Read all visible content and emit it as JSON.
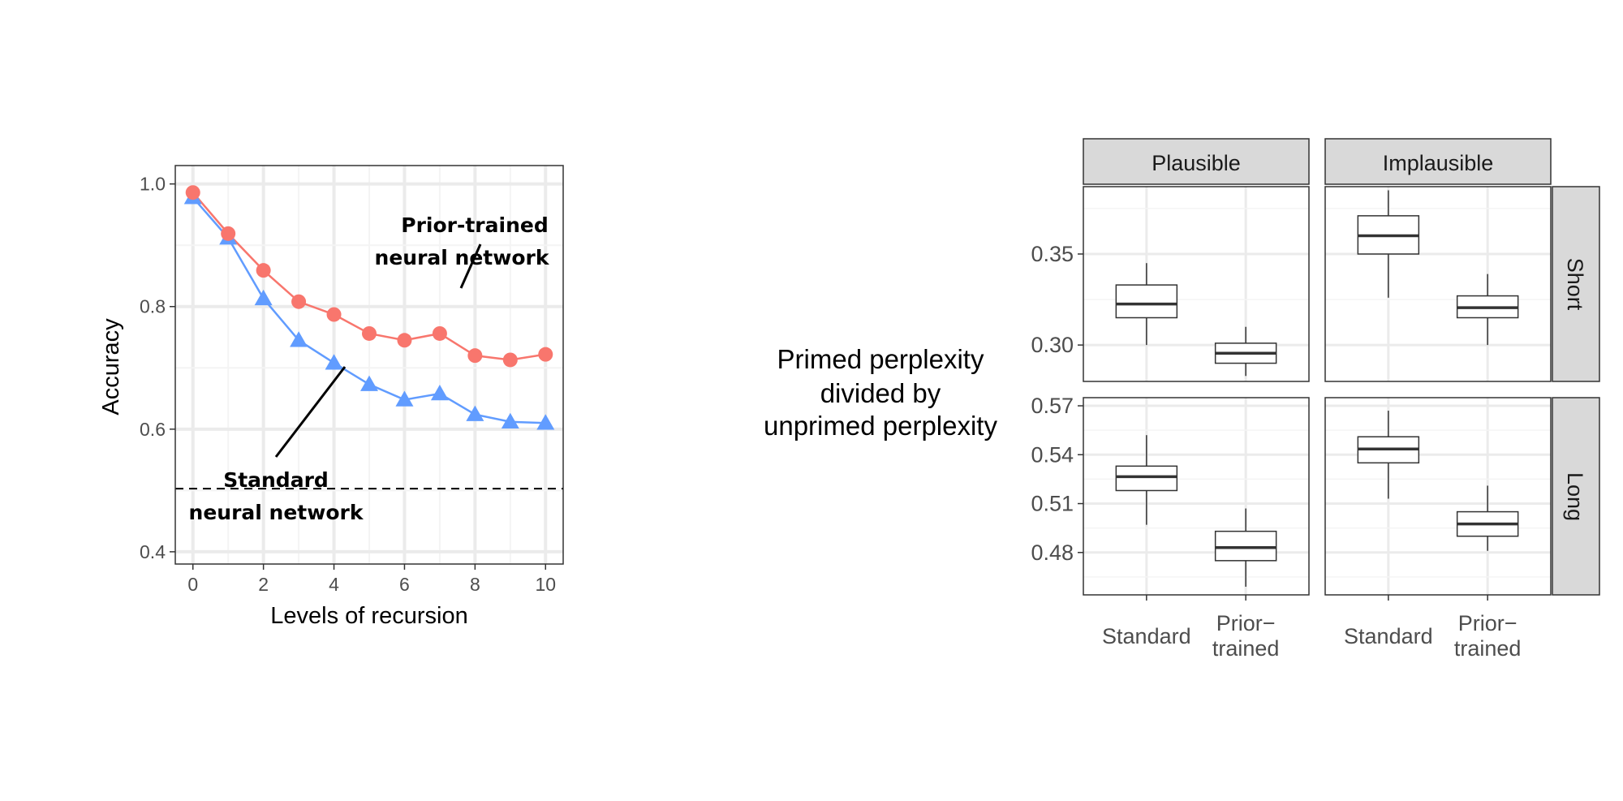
{
  "chart_data": [
    {
      "type": "line",
      "xlabel": "Levels of recursion",
      "ylabel": "Accuracy",
      "xlim": [
        -0.5,
        10.5
      ],
      "ylim": [
        0.38,
        1.03
      ],
      "x_ticks": [
        "0",
        "2",
        "4",
        "6",
        "8",
        "10"
      ],
      "y_ticks": [
        "0.4",
        "0.6",
        "0.8",
        "1.0"
      ],
      "grid": true,
      "x": [
        0,
        1,
        2,
        3,
        4,
        5,
        6,
        7,
        8,
        9,
        10
      ],
      "series": [
        {
          "name": "Prior-trained neural network",
          "color": "#F8766D",
          "marker": "circle",
          "values": [
            0.986,
            0.919,
            0.859,
            0.808,
            0.787,
            0.756,
            0.745,
            0.756,
            0.72,
            0.713,
            0.722
          ]
        },
        {
          "name": "Standard neural network",
          "color": "#619CFF",
          "marker": "triangle",
          "values": [
            0.978,
            0.912,
            0.813,
            0.745,
            0.708,
            0.673,
            0.648,
            0.658,
            0.624,
            0.612,
            0.61
          ]
        }
      ],
      "reference_line": {
        "y": 0.503,
        "style": "dashed"
      },
      "annotations": {
        "prior_line1": "Prior-trained",
        "prior_line2": "neural network",
        "standard_line1": "Standard",
        "standard_line2": "neural network"
      }
    },
    {
      "type": "box",
      "ylabel_lines": [
        "Primed perplexity",
        "divided by",
        "unprimed perplexity"
      ],
      "columns": [
        "Plausible",
        "Implausible"
      ],
      "rows": [
        "Short",
        "Long"
      ],
      "x_categories": [
        {
          "line1": "Standard",
          "line2": ""
        },
        {
          "line1": "Prior−",
          "line2": "trained"
        }
      ],
      "row_scales": [
        {
          "row": "Short",
          "ylim": [
            0.28,
            0.387
          ],
          "ticks": [
            0.3,
            0.35
          ],
          "tick_labels": [
            "0.30",
            "0.35"
          ]
        },
        {
          "row": "Long",
          "ylim": [
            0.454,
            0.575
          ],
          "ticks": [
            0.48,
            0.51,
            0.54,
            0.57
          ],
          "tick_labels": [
            "0.48",
            "0.51",
            "0.54",
            "0.57"
          ]
        }
      ],
      "panels": [
        {
          "row": "Short",
          "column": "Plausible",
          "boxes": [
            {
              "category": "Standard",
              "whisker_low": 0.3,
              "q1": 0.315,
              "median": 0.3225,
              "q3": 0.333,
              "whisker_high": 0.345
            },
            {
              "category": "Prior-trained",
              "whisker_low": 0.283,
              "q1": 0.29,
              "median": 0.2955,
              "q3": 0.301,
              "whisker_high": 0.31
            }
          ]
        },
        {
          "row": "Short",
          "column": "Implausible",
          "boxes": [
            {
              "category": "Standard",
              "whisker_low": 0.326,
              "q1": 0.35,
              "median": 0.36,
              "q3": 0.371,
              "whisker_high": 0.385
            },
            {
              "category": "Prior-trained",
              "whisker_low": 0.3,
              "q1": 0.315,
              "median": 0.3205,
              "q3": 0.327,
              "whisker_high": 0.339
            }
          ]
        },
        {
          "row": "Long",
          "column": "Plausible",
          "boxes": [
            {
              "category": "Standard",
              "whisker_low": 0.497,
              "q1": 0.518,
              "median": 0.5265,
              "q3": 0.533,
              "whisker_high": 0.552
            },
            {
              "category": "Prior-trained",
              "whisker_low": 0.459,
              "q1": 0.475,
              "median": 0.483,
              "q3": 0.493,
              "whisker_high": 0.507
            }
          ]
        },
        {
          "row": "Long",
          "column": "Implausible",
          "boxes": [
            {
              "category": "Standard",
              "whisker_low": 0.513,
              "q1": 0.535,
              "median": 0.5435,
              "q3": 0.551,
              "whisker_high": 0.567
            },
            {
              "category": "Prior-trained",
              "whisker_low": 0.481,
              "q1": 0.49,
              "median": 0.4975,
              "q3": 0.505,
              "whisker_high": 0.521
            }
          ]
        }
      ]
    }
  ]
}
